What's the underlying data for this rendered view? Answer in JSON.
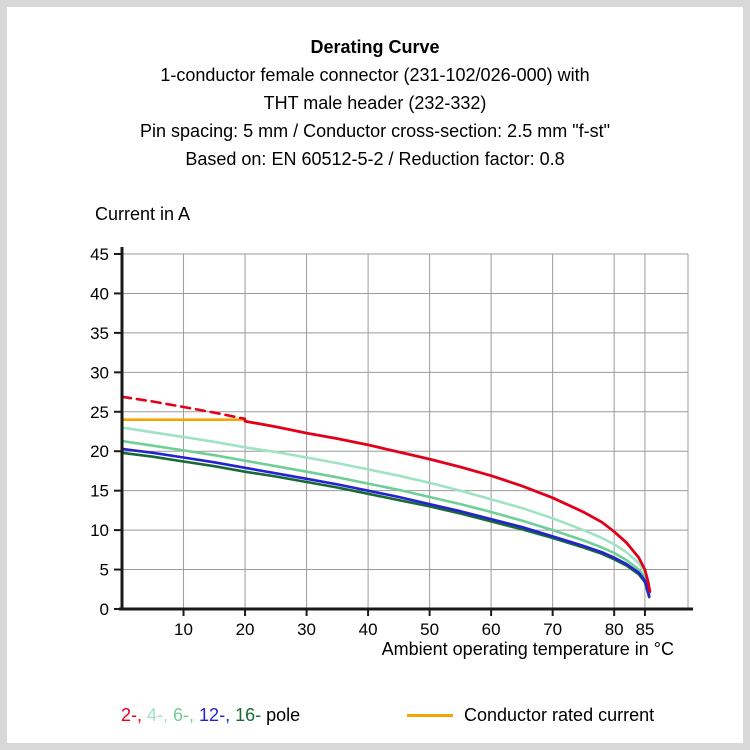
{
  "header": {
    "title": "Derating Curve",
    "lines": [
      "1-conductor female connector (231-102/026-000) with",
      "THT male header (232-332)",
      "Pin spacing: 5 mm / Conductor cross-section: 2.5 mm \"f-st\"",
      "Based on: EN 60512-5-2 / Reduction factor: 0.8"
    ]
  },
  "chart_data": {
    "type": "line",
    "y_title": "Current in A",
    "x_title": "Ambient operating temperature in °C",
    "x_range": [
      0,
      92
    ],
    "y_range": [
      0,
      45
    ],
    "x_ticks": [
      10,
      20,
      30,
      40,
      50,
      60,
      70,
      80,
      85
    ],
    "y_ticks": [
      0,
      5,
      10,
      15,
      20,
      25,
      30,
      35,
      40,
      45
    ],
    "grid_color": "#9b9b9b",
    "axis_color": "#1a1a1a",
    "series": [
      {
        "name": "conductor-rated-current",
        "color": "#f7a300",
        "width": 2.6,
        "points": [
          [
            0,
            24
          ],
          [
            20,
            24
          ]
        ]
      },
      {
        "name": "2-pole-dashed",
        "color": "#e2001a",
        "width": 2.6,
        "dash": "9 6",
        "points": [
          [
            0,
            26.9
          ],
          [
            5,
            26.3
          ],
          [
            10,
            25.6
          ],
          [
            15,
            24.9
          ],
          [
            20,
            24.1
          ]
        ]
      },
      {
        "name": "4-pole",
        "color": "#9fe3c4",
        "width": 2.6,
        "points": [
          [
            0,
            23
          ],
          [
            5,
            22.4
          ],
          [
            10,
            21.8
          ],
          [
            15,
            21.2
          ],
          [
            20,
            20.5
          ],
          [
            25,
            19.9
          ],
          [
            30,
            19.2
          ],
          [
            35,
            18.5
          ],
          [
            40,
            17.7
          ],
          [
            45,
            16.9
          ],
          [
            50,
            16
          ],
          [
            55,
            15
          ],
          [
            60,
            13.9
          ],
          [
            65,
            12.8
          ],
          [
            70,
            11.5
          ],
          [
            75,
            10
          ],
          [
            78,
            9
          ],
          [
            80,
            8.2
          ],
          [
            82,
            7.2
          ],
          [
            84,
            5.8
          ],
          [
            85,
            4.6
          ],
          [
            85.5,
            3.2
          ],
          [
            85.8,
            2
          ]
        ]
      },
      {
        "name": "6-pole",
        "color": "#6fcf97",
        "width": 2.6,
        "points": [
          [
            0,
            21.3
          ],
          [
            5,
            20.7
          ],
          [
            10,
            20.1
          ],
          [
            15,
            19.5
          ],
          [
            20,
            18.8
          ],
          [
            25,
            18.1
          ],
          [
            30,
            17.4
          ],
          [
            35,
            16.7
          ],
          [
            40,
            15.9
          ],
          [
            45,
            15.1
          ],
          [
            50,
            14.2
          ],
          [
            55,
            13.3
          ],
          [
            60,
            12.3
          ],
          [
            65,
            11.2
          ],
          [
            70,
            10
          ],
          [
            75,
            8.7
          ],
          [
            78,
            7.8
          ],
          [
            80,
            7.1
          ],
          [
            82,
            6.2
          ],
          [
            84,
            5
          ],
          [
            85,
            4
          ],
          [
            85.4,
            2.8
          ],
          [
            85.7,
            1.8
          ]
        ]
      },
      {
        "name": "16-pole",
        "color": "#176a33",
        "width": 2.6,
        "points": [
          [
            0,
            19.8
          ],
          [
            5,
            19.3
          ],
          [
            10,
            18.7
          ],
          [
            15,
            18.1
          ],
          [
            20,
            17.4
          ],
          [
            25,
            16.8
          ],
          [
            30,
            16.1
          ],
          [
            35,
            15.4
          ],
          [
            40,
            14.6
          ],
          [
            45,
            13.8
          ],
          [
            50,
            13
          ],
          [
            55,
            12.1
          ],
          [
            60,
            11.1
          ],
          [
            65,
            10.1
          ],
          [
            70,
            9
          ],
          [
            75,
            7.8
          ],
          [
            78,
            7
          ],
          [
            80,
            6.3
          ],
          [
            82,
            5.5
          ],
          [
            84,
            4.4
          ],
          [
            85,
            3.4
          ],
          [
            85.4,
            2.3
          ],
          [
            85.7,
            1.5
          ]
        ]
      },
      {
        "name": "12-pole",
        "color": "#2323d3",
        "width": 2.6,
        "points": [
          [
            0,
            20.3
          ],
          [
            5,
            19.8
          ],
          [
            10,
            19.2
          ],
          [
            15,
            18.6
          ],
          [
            20,
            17.9
          ],
          [
            25,
            17.2
          ],
          [
            30,
            16.5
          ],
          [
            35,
            15.8
          ],
          [
            40,
            15
          ],
          [
            45,
            14.2
          ],
          [
            50,
            13.3
          ],
          [
            55,
            12.4
          ],
          [
            60,
            11.4
          ],
          [
            65,
            10.4
          ],
          [
            70,
            9.2
          ],
          [
            75,
            8
          ],
          [
            78,
            7.2
          ],
          [
            80,
            6.5
          ],
          [
            82,
            5.7
          ],
          [
            84,
            4.6
          ],
          [
            85,
            3.6
          ],
          [
            85.4,
            2.5
          ],
          [
            85.7,
            1.6
          ]
        ]
      },
      {
        "name": "2-pole",
        "color": "#e2001a",
        "width": 2.8,
        "points": [
          [
            20,
            23.8
          ],
          [
            25,
            23.1
          ],
          [
            30,
            22.3
          ],
          [
            35,
            21.6
          ],
          [
            40,
            20.8
          ],
          [
            45,
            19.9
          ],
          [
            50,
            19
          ],
          [
            55,
            18
          ],
          [
            60,
            16.9
          ],
          [
            65,
            15.6
          ],
          [
            70,
            14.1
          ],
          [
            75,
            12.3
          ],
          [
            78,
            11
          ],
          [
            80,
            9.8
          ],
          [
            82,
            8.4
          ],
          [
            84,
            6.5
          ],
          [
            85,
            5
          ],
          [
            85.5,
            3.5
          ],
          [
            85.8,
            2.2
          ]
        ]
      }
    ]
  },
  "legend": {
    "pole": [
      {
        "label": "2-,",
        "color": "#e2001a"
      },
      {
        "label": "4-,",
        "color": "#9fe3c4"
      },
      {
        "label": "6-,",
        "color": "#6fcf97"
      },
      {
        "label": "12-,",
        "color": "#2323d3"
      },
      {
        "label": "16-",
        "color": "#176a33"
      }
    ],
    "pole_suffix": "pole",
    "rated": {
      "label": "Conductor rated current",
      "color": "#f7a300"
    }
  }
}
